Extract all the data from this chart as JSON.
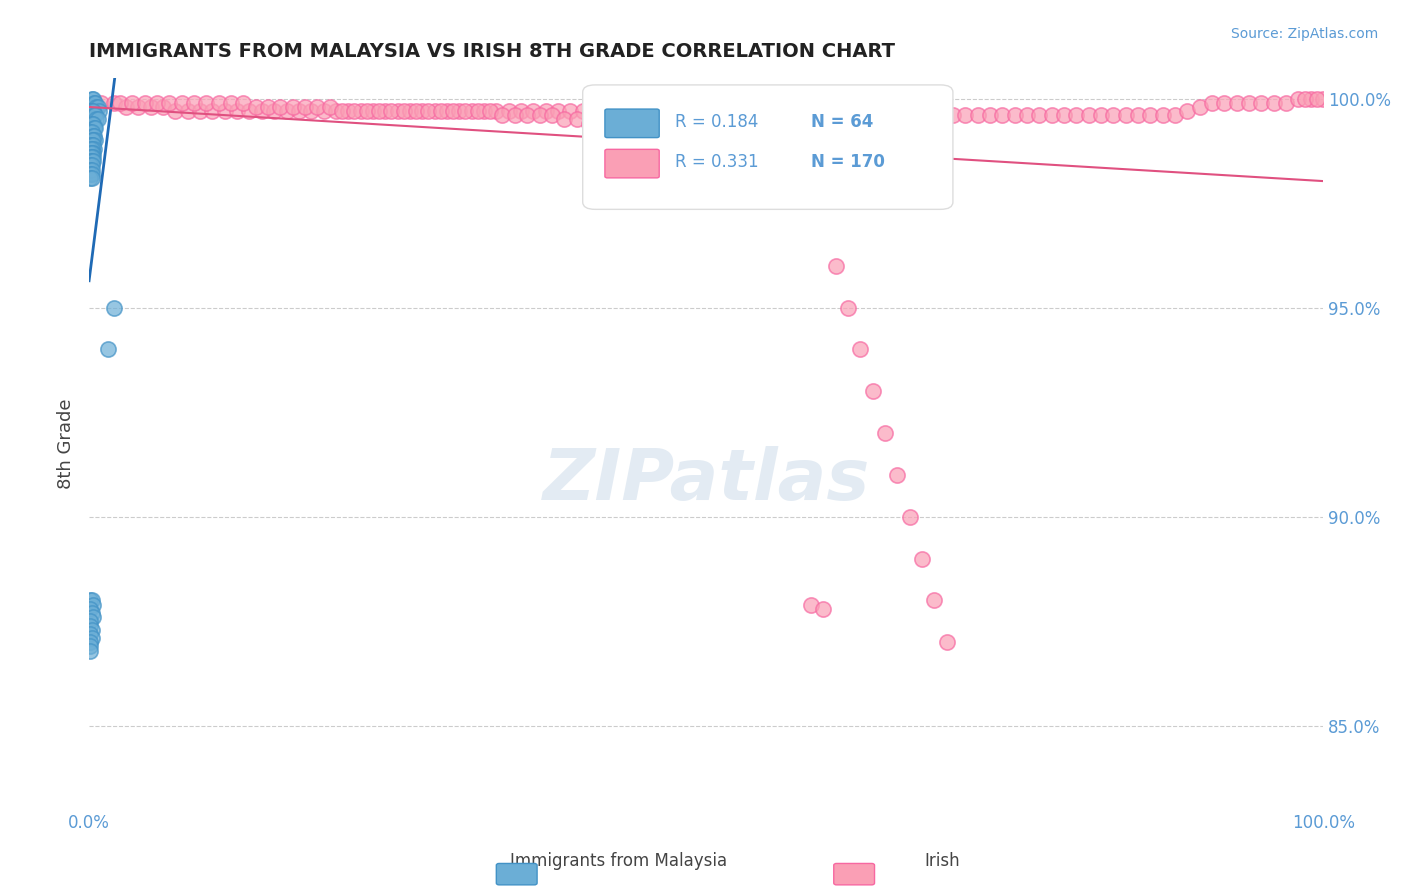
{
  "title": "IMMIGRANTS FROM MALAYSIA VS IRISH 8TH GRADE CORRELATION CHART",
  "source_text": "Source: ZipAtlas.com",
  "xlabel": "",
  "ylabel": "8th Grade",
  "xlim": [
    0.0,
    1.0
  ],
  "ylim": [
    0.83,
    1.005
  ],
  "yticks": [
    0.85,
    0.9,
    0.95,
    1.0
  ],
  "ytick_labels": [
    "85.0%",
    "90.0%",
    "95.0%",
    "100.0%"
  ],
  "xticks": [
    0.0,
    0.25,
    0.5,
    0.75,
    1.0
  ],
  "xtick_labels": [
    "0.0%",
    "",
    "",
    "",
    "100.0%"
  ],
  "blue_R": 0.184,
  "blue_N": 64,
  "pink_R": 0.331,
  "pink_N": 170,
  "blue_color": "#6baed6",
  "pink_color": "#fa9fb5",
  "blue_edge": "#4292c6",
  "pink_edge": "#f768a1",
  "trend_blue": "#1f6ab5",
  "trend_pink": "#e05080",
  "legend_blue_label": "Immigrants from Malaysia",
  "legend_pink_label": "Irish",
  "watermark": "ZIPatlas",
  "background_color": "#ffffff",
  "grid_color": "#cccccc",
  "tick_color": "#5b9bd5",
  "title_color": "#222222",
  "blue_scatter_x": [
    0.002,
    0.003,
    0.004,
    0.005,
    0.006,
    0.007,
    0.008,
    0.001,
    0.002,
    0.003,
    0.004,
    0.005,
    0.006,
    0.007,
    0.002,
    0.003,
    0.004,
    0.005,
    0.001,
    0.002,
    0.003,
    0.004,
    0.005,
    0.002,
    0.003,
    0.001,
    0.002,
    0.003,
    0.004,
    0.001,
    0.002,
    0.003,
    0.001,
    0.002,
    0.003,
    0.001,
    0.002,
    0.001,
    0.002,
    0.003,
    0.001,
    0.002,
    0.001,
    0.002,
    0.001,
    0.002,
    0.001,
    0.002,
    0.001,
    0.002,
    0.003,
    0.001,
    0.002,
    0.003,
    0.001,
    0.001,
    0.002,
    0.001,
    0.002,
    0.001,
    0.001,
    0.001,
    0.02,
    0.015
  ],
  "blue_scatter_y": [
    1.0,
    1.0,
    0.999,
    0.999,
    0.998,
    0.998,
    0.997,
    0.997,
    0.997,
    0.997,
    0.996,
    0.996,
    0.995,
    0.995,
    0.994,
    0.994,
    0.993,
    0.993,
    0.992,
    0.992,
    0.991,
    0.991,
    0.99,
    0.99,
    0.99,
    0.989,
    0.989,
    0.989,
    0.988,
    0.988,
    0.988,
    0.987,
    0.987,
    0.987,
    0.986,
    0.986,
    0.986,
    0.985,
    0.985,
    0.985,
    0.984,
    0.984,
    0.983,
    0.983,
    0.982,
    0.982,
    0.981,
    0.981,
    0.88,
    0.88,
    0.879,
    0.878,
    0.877,
    0.876,
    0.875,
    0.874,
    0.873,
    0.872,
    0.871,
    0.87,
    0.869,
    0.868,
    0.95,
    0.94
  ],
  "pink_scatter_x": [
    0.01,
    0.02,
    0.03,
    0.04,
    0.05,
    0.06,
    0.07,
    0.08,
    0.09,
    0.1,
    0.11,
    0.12,
    0.13,
    0.14,
    0.15,
    0.16,
    0.17,
    0.18,
    0.19,
    0.2,
    0.21,
    0.22,
    0.23,
    0.24,
    0.25,
    0.26,
    0.27,
    0.28,
    0.29,
    0.3,
    0.31,
    0.32,
    0.33,
    0.34,
    0.35,
    0.36,
    0.37,
    0.38,
    0.39,
    0.4,
    0.41,
    0.42,
    0.43,
    0.44,
    0.45,
    0.46,
    0.47,
    0.48,
    0.49,
    0.5,
    0.51,
    0.52,
    0.53,
    0.54,
    0.55,
    0.56,
    0.57,
    0.58,
    0.59,
    0.6,
    0.61,
    0.62,
    0.63,
    0.64,
    0.65,
    0.66,
    0.67,
    0.68,
    0.69,
    0.7,
    0.71,
    0.72,
    0.73,
    0.74,
    0.75,
    0.76,
    0.77,
    0.78,
    0.79,
    0.8,
    0.81,
    0.82,
    0.83,
    0.84,
    0.85,
    0.86,
    0.87,
    0.88,
    0.89,
    0.9,
    0.91,
    0.92,
    0.93,
    0.94,
    0.95,
    0.96,
    0.97,
    0.98,
    0.99,
    1.0,
    0.025,
    0.035,
    0.045,
    0.055,
    0.065,
    0.075,
    0.085,
    0.095,
    0.105,
    0.115,
    0.125,
    0.135,
    0.145,
    0.155,
    0.165,
    0.175,
    0.185,
    0.195,
    0.205,
    0.215,
    0.225,
    0.235,
    0.245,
    0.255,
    0.265,
    0.275,
    0.285,
    0.295,
    0.305,
    0.315,
    0.325,
    0.335,
    0.345,
    0.355,
    0.365,
    0.375,
    0.385,
    0.395,
    0.405,
    0.415,
    0.425,
    0.435,
    0.445,
    0.455,
    0.465,
    0.475,
    0.485,
    0.495,
    0.505,
    0.515,
    0.525,
    0.535,
    0.545,
    0.555,
    0.565,
    0.575,
    0.585,
    0.595,
    0.605,
    0.615,
    0.625,
    0.635,
    0.645,
    0.655,
    0.665,
    0.675,
    0.685,
    0.695,
    0.985,
    0.995
  ],
  "pink_scatter_y": [
    0.999,
    0.999,
    0.998,
    0.998,
    0.998,
    0.998,
    0.997,
    0.997,
    0.997,
    0.997,
    0.997,
    0.997,
    0.997,
    0.997,
    0.997,
    0.997,
    0.997,
    0.997,
    0.997,
    0.997,
    0.997,
    0.997,
    0.997,
    0.997,
    0.997,
    0.997,
    0.997,
    0.997,
    0.997,
    0.997,
    0.997,
    0.997,
    0.997,
    0.997,
    0.997,
    0.997,
    0.997,
    0.997,
    0.997,
    0.997,
    0.997,
    0.997,
    0.997,
    0.997,
    0.997,
    0.997,
    0.997,
    0.997,
    0.997,
    0.997,
    0.997,
    0.997,
    0.997,
    0.996,
    0.996,
    0.996,
    0.996,
    0.996,
    0.996,
    0.996,
    0.996,
    0.996,
    0.996,
    0.996,
    0.996,
    0.996,
    0.996,
    0.996,
    0.996,
    0.996,
    0.996,
    0.996,
    0.996,
    0.996,
    0.996,
    0.996,
    0.996,
    0.996,
    0.996,
    0.996,
    0.996,
    0.996,
    0.996,
    0.996,
    0.996,
    0.996,
    0.996,
    0.996,
    0.997,
    0.998,
    0.999,
    0.999,
    0.999,
    0.999,
    0.999,
    0.999,
    0.999,
    1.0,
    1.0,
    1.0,
    0.999,
    0.999,
    0.999,
    0.999,
    0.999,
    0.999,
    0.999,
    0.999,
    0.999,
    0.999,
    0.999,
    0.998,
    0.998,
    0.998,
    0.998,
    0.998,
    0.998,
    0.998,
    0.997,
    0.997,
    0.997,
    0.997,
    0.997,
    0.997,
    0.997,
    0.997,
    0.997,
    0.997,
    0.997,
    0.997,
    0.997,
    0.996,
    0.996,
    0.996,
    0.996,
    0.996,
    0.995,
    0.995,
    0.994,
    0.994,
    0.993,
    0.993,
    0.992,
    0.991,
    0.99,
    0.99,
    0.989,
    0.988,
    0.987,
    0.986,
    0.985,
    0.984,
    0.983,
    0.982,
    0.981,
    0.98,
    0.879,
    0.878,
    0.96,
    0.95,
    0.94,
    0.93,
    0.92,
    0.91,
    0.9,
    0.89,
    0.88,
    0.87,
    1.0,
    1.0
  ]
}
